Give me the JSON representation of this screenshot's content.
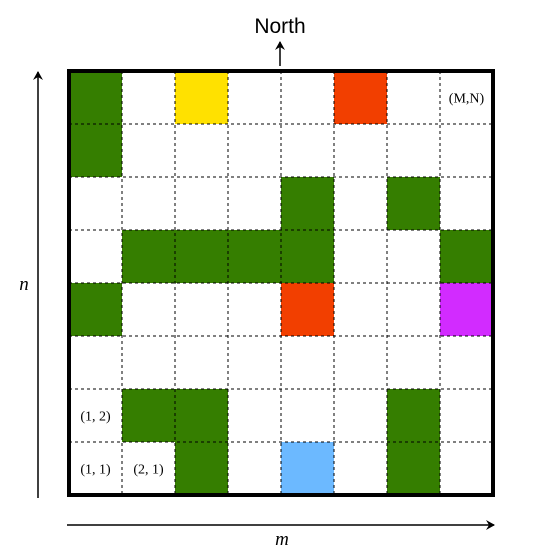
{
  "direction_label": "North",
  "axis_x_label": "m",
  "axis_y_label": "n",
  "grid": {
    "columns": 8,
    "rows": 8
  },
  "colors": {
    "green": "#357e00",
    "yellow": "#ffe100",
    "red": "#f23f00",
    "magenta": "#d22bff",
    "blue": "#6cb9ff",
    "border": "#000000",
    "gridline": "#000000"
  },
  "cells": [
    {
      "col": 1,
      "row": 8,
      "color": "green"
    },
    {
      "col": 3,
      "row": 8,
      "color": "yellow"
    },
    {
      "col": 6,
      "row": 8,
      "color": "red"
    },
    {
      "col": 1,
      "row": 7,
      "color": "green"
    },
    {
      "col": 5,
      "row": 6,
      "color": "green"
    },
    {
      "col": 7,
      "row": 6,
      "color": "green"
    },
    {
      "col": 2,
      "row": 5,
      "color": "green"
    },
    {
      "col": 3,
      "row": 5,
      "color": "green"
    },
    {
      "col": 4,
      "row": 5,
      "color": "green"
    },
    {
      "col": 5,
      "row": 5,
      "color": "green"
    },
    {
      "col": 8,
      "row": 5,
      "color": "green"
    },
    {
      "col": 1,
      "row": 4,
      "color": "green"
    },
    {
      "col": 5,
      "row": 4,
      "color": "red"
    },
    {
      "col": 8,
      "row": 4,
      "color": "magenta"
    },
    {
      "col": 2,
      "row": 2,
      "color": "green"
    },
    {
      "col": 3,
      "row": 2,
      "color": "green"
    },
    {
      "col": 7,
      "row": 2,
      "color": "green"
    },
    {
      "col": 3,
      "row": 1,
      "color": "green"
    },
    {
      "col": 5,
      "row": 1,
      "color": "blue"
    },
    {
      "col": 7,
      "row": 1,
      "color": "green"
    }
  ],
  "cell_labels": [
    {
      "col": 8,
      "row": 8,
      "text": "(M,N)"
    },
    {
      "col": 1,
      "row": 2,
      "text": "(1, 2)"
    },
    {
      "col": 1,
      "row": 1,
      "text": "(1, 1)"
    },
    {
      "col": 2,
      "row": 1,
      "text": "(2, 1)"
    }
  ]
}
